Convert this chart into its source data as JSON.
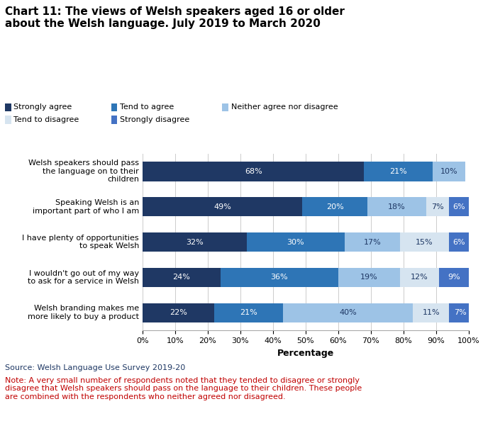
{
  "title": "Chart 11: The views of Welsh speakers aged 16 or older\nabout the Welsh language. July 2019 to March 2020",
  "categories": [
    "Welsh speakers should pass\nthe language on to their\nchildren",
    "Speaking Welsh is an\nimportant part of who I am",
    "I have plenty of opportunities\nto speak Welsh",
    "I wouldn't go out of my way\nto ask for a service in Welsh",
    "Welsh branding makes me\nmore likely to buy a product"
  ],
  "series": [
    {
      "name": "Strongly agree",
      "color": "#1f3864",
      "values": [
        68,
        49,
        32,
        24,
        22
      ]
    },
    {
      "name": "Tend to agree",
      "color": "#2e75b6",
      "values": [
        21,
        20,
        30,
        36,
        21
      ]
    },
    {
      "name": "Neither agree nor disagree",
      "color": "#9dc3e6",
      "values": [
        10,
        18,
        17,
        19,
        40
      ]
    },
    {
      "name": "Tend to disagree",
      "color": "#d6e4f0",
      "values": [
        0,
        7,
        15,
        12,
        11
      ]
    },
    {
      "name": "Strongly disagree",
      "color": "#4472c4",
      "values": [
        0,
        6,
        6,
        9,
        7
      ]
    }
  ],
  "xlabel": "Percentage",
  "xlim": [
    0,
    100
  ],
  "xticks": [
    0,
    10,
    20,
    30,
    40,
    50,
    60,
    70,
    80,
    90,
    100
  ],
  "xtick_labels": [
    "0%",
    "10%",
    "20%",
    "30%",
    "40%",
    "50%",
    "60%",
    "70%",
    "80%",
    "90%",
    "100%"
  ],
  "source_text": "Source: Welsh Language Use Survey 2019-20",
  "source_color": "#1f3864",
  "note_text": "Note: A very small number of respondents noted that they tended to disagree or strongly\ndisagree that Welsh speakers should pass on the language to their children. These people\nare combined with the respondents who neither agreed nor disagreed.",
  "note_color": "#c00000",
  "bar_height": 0.55,
  "background_color": "#ffffff",
  "legend_row1": [
    0,
    1,
    2
  ],
  "legend_row2": [
    3,
    4
  ],
  "label_colors": [
    "#ffffff",
    "#ffffff",
    "#1f3864",
    "#1f3864",
    "#ffffff"
  ]
}
